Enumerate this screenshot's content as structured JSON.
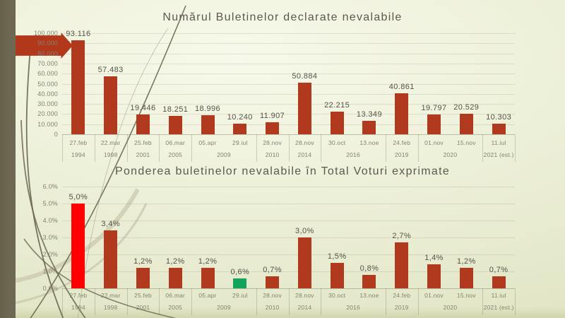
{
  "slide": {
    "colors": {
      "bar_default": "#b13a1e",
      "bar_red": "#fe0000",
      "bar_green": "#13a45c",
      "arrow": "#b2381c",
      "left_bar": "#6e6852",
      "background_center": "#f7f9ea",
      "background_edge": "#e2e6c6",
      "grass_dark": "#6d6750",
      "grass_light": "#cbc8ae",
      "title_text": "#5c5850",
      "label_text": "#56524a",
      "tick_text": "#86826f"
    }
  },
  "chart_data": [
    {
      "type": "bar",
      "title": "Numărul Buletinelor declarate nevalabile",
      "categories": [
        "27.feb",
        "22.mar",
        "25.feb",
        "06.mar",
        "05.apr",
        "29.iul",
        "28.nov",
        "28.nov",
        "30.oct",
        "13.noe",
        "24.feb",
        "01.nov",
        "15.nov",
        "11.iul"
      ],
      "year_groups": [
        {
          "label": "1994",
          "span": 1
        },
        {
          "label": "1998",
          "span": 1
        },
        {
          "label": "2001",
          "span": 1
        },
        {
          "label": "2005",
          "span": 1
        },
        {
          "label": "2009",
          "span": 2
        },
        {
          "label": "2010",
          "span": 1
        },
        {
          "label": "2014",
          "span": 1
        },
        {
          "label": "2016",
          "span": 2
        },
        {
          "label": "2019",
          "span": 1
        },
        {
          "label": "2020",
          "span": 2
        },
        {
          "label": "2021 (est.)",
          "span": 1
        }
      ],
      "values": [
        93116,
        57483,
        19446,
        18251,
        18996,
        10240,
        11907,
        50884,
        22215,
        13349,
        40861,
        19797,
        20529,
        10303
      ],
      "value_labels": [
        "93.116",
        "57.483",
        "19.446",
        "18.251",
        "18.996",
        "10.240",
        "11.907",
        "50.884",
        "22.215",
        "13.349",
        "40.861",
        "19.797",
        "20.529",
        "10.303"
      ],
      "bar_color_overrides": {},
      "ylim": [
        0,
        100000
      ],
      "yticks": [
        "100.000",
        "90.000",
        "80.000",
        "70.000",
        "60.000",
        "50.000",
        "40.000",
        "30.000",
        "20.000",
        "10.000",
        "0"
      ],
      "grid": true,
      "legend": null,
      "annotations": [
        "red block arrow pointing at the 1994 bar"
      ]
    },
    {
      "type": "bar",
      "title": "Ponderea buletinelor nevalabile în Total Voturi exprimate",
      "categories": [
        "27.feb",
        "22.mar",
        "25.feb",
        "06.mar",
        "05.apr",
        "29.iul",
        "28.nov",
        "28.nov",
        "30.oct",
        "13.noe",
        "24.feb",
        "01.nov",
        "15.nov",
        "11.iul"
      ],
      "year_groups": [
        {
          "label": "1994",
          "span": 1
        },
        {
          "label": "1998",
          "span": 1
        },
        {
          "label": "2001",
          "span": 1
        },
        {
          "label": "2005",
          "span": 1
        },
        {
          "label": "2009",
          "span": 2
        },
        {
          "label": "2010",
          "span": 1
        },
        {
          "label": "2014",
          "span": 1
        },
        {
          "label": "2016",
          "span": 2
        },
        {
          "label": "2019",
          "span": 1
        },
        {
          "label": "2020",
          "span": 2
        },
        {
          "label": "2021 (est.)",
          "span": 1
        }
      ],
      "values": [
        5.0,
        3.4,
        1.2,
        1.2,
        1.2,
        0.6,
        0.7,
        3.0,
        1.5,
        0.8,
        2.7,
        1.4,
        1.2,
        0.7
      ],
      "value_labels": [
        "5,0%",
        "3,4%",
        "1,2%",
        "1,2%",
        "1,2%",
        "0,6%",
        "0,7%",
        "3,0%",
        "1,5%",
        "0,8%",
        "2,7%",
        "1,4%",
        "1,2%",
        "0,7%"
      ],
      "bar_color_overrides": {
        "0": "#fe0000",
        "5": "#13a45c"
      },
      "ylim": [
        0,
        6
      ],
      "yticks": [
        "6.0%",
        "5.0%",
        "4.0%",
        "3.0%",
        "2.0%",
        "1.0%",
        "0.0%"
      ],
      "grid": true,
      "legend": null
    }
  ]
}
